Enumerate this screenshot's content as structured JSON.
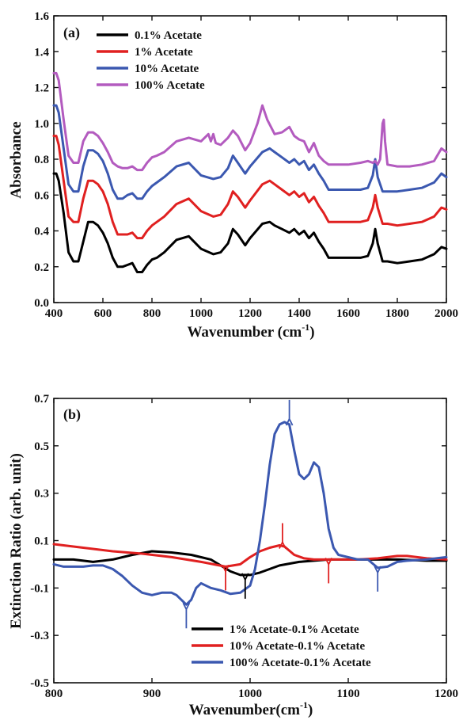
{
  "chart_data": [
    {
      "type": "line",
      "panel": "(a)",
      "xlabel": "Wavenumber (cm",
      "xlabel_sup": "-1",
      "xlabel_end": ")",
      "ylabel": "Absorbance",
      "xlim": [
        400,
        2000
      ],
      "ylim": [
        0.0,
        1.6
      ],
      "xticks": [
        400,
        600,
        800,
        1000,
        1200,
        1400,
        1600,
        1800,
        2000
      ],
      "yticks": [
        "0.0",
        "0.2",
        "0.4",
        "0.6",
        "0.8",
        "1.0",
        "1.2",
        "1.4",
        "1.6"
      ],
      "legend_position": "top-left",
      "series": [
        {
          "name": "0.1% Acetate",
          "color": "#000000",
          "x": [
            400,
            410,
            420,
            440,
            460,
            480,
            500,
            520,
            540,
            560,
            580,
            600,
            620,
            640,
            660,
            680,
            700,
            720,
            740,
            760,
            780,
            800,
            820,
            850,
            900,
            950,
            1000,
            1050,
            1080,
            1110,
            1130,
            1150,
            1180,
            1200,
            1250,
            1280,
            1300,
            1330,
            1360,
            1380,
            1400,
            1420,
            1440,
            1460,
            1480,
            1500,
            1520,
            1560,
            1600,
            1650,
            1680,
            1700,
            1710,
            1720,
            1740,
            1760,
            1800,
            1850,
            1900,
            1950,
            1980,
            2000
          ],
          "y": [
            0.72,
            0.72,
            0.68,
            0.5,
            0.28,
            0.23,
            0.23,
            0.34,
            0.45,
            0.45,
            0.43,
            0.39,
            0.33,
            0.25,
            0.2,
            0.2,
            0.21,
            0.22,
            0.17,
            0.17,
            0.21,
            0.24,
            0.25,
            0.28,
            0.35,
            0.37,
            0.3,
            0.27,
            0.28,
            0.33,
            0.41,
            0.38,
            0.32,
            0.36,
            0.44,
            0.45,
            0.43,
            0.41,
            0.39,
            0.41,
            0.38,
            0.4,
            0.36,
            0.39,
            0.34,
            0.3,
            0.25,
            0.25,
            0.25,
            0.25,
            0.26,
            0.33,
            0.41,
            0.33,
            0.23,
            0.23,
            0.22,
            0.23,
            0.24,
            0.27,
            0.31,
            0.3
          ]
        },
        {
          "name": "1% Acetate",
          "color": "#e02020",
          "x": [
            400,
            410,
            420,
            440,
            460,
            480,
            500,
            520,
            540,
            560,
            580,
            600,
            620,
            640,
            660,
            680,
            700,
            720,
            740,
            760,
            780,
            800,
            820,
            850,
            900,
            950,
            1000,
            1050,
            1080,
            1110,
            1130,
            1150,
            1180,
            1200,
            1250,
            1280,
            1300,
            1330,
            1360,
            1380,
            1400,
            1420,
            1440,
            1460,
            1480,
            1500,
            1520,
            1560,
            1600,
            1650,
            1680,
            1700,
            1710,
            1720,
            1740,
            1760,
            1800,
            1850,
            1900,
            1950,
            1980,
            2000
          ],
          "y": [
            0.93,
            0.93,
            0.88,
            0.68,
            0.48,
            0.45,
            0.45,
            0.58,
            0.68,
            0.68,
            0.66,
            0.62,
            0.55,
            0.45,
            0.38,
            0.38,
            0.38,
            0.39,
            0.36,
            0.36,
            0.4,
            0.43,
            0.45,
            0.48,
            0.55,
            0.58,
            0.51,
            0.48,
            0.49,
            0.55,
            0.62,
            0.59,
            0.53,
            0.57,
            0.66,
            0.68,
            0.66,
            0.63,
            0.6,
            0.62,
            0.59,
            0.61,
            0.56,
            0.59,
            0.54,
            0.5,
            0.45,
            0.45,
            0.45,
            0.45,
            0.46,
            0.53,
            0.6,
            0.53,
            0.44,
            0.44,
            0.43,
            0.44,
            0.45,
            0.48,
            0.53,
            0.52
          ]
        },
        {
          "name": "10% Acetate",
          "color": "#3b58b0",
          "x": [
            400,
            410,
            420,
            440,
            460,
            480,
            500,
            520,
            540,
            560,
            580,
            600,
            620,
            640,
            660,
            680,
            700,
            720,
            740,
            760,
            780,
            800,
            820,
            850,
            900,
            950,
            1000,
            1050,
            1080,
            1110,
            1130,
            1150,
            1180,
            1200,
            1250,
            1280,
            1300,
            1330,
            1360,
            1380,
            1400,
            1420,
            1440,
            1460,
            1480,
            1500,
            1520,
            1560,
            1600,
            1650,
            1680,
            1700,
            1710,
            1720,
            1740,
            1760,
            1800,
            1850,
            1900,
            1950,
            1980,
            2000
          ],
          "y": [
            1.1,
            1.1,
            1.06,
            0.86,
            0.66,
            0.62,
            0.62,
            0.76,
            0.85,
            0.85,
            0.83,
            0.79,
            0.72,
            0.63,
            0.58,
            0.58,
            0.6,
            0.61,
            0.58,
            0.58,
            0.62,
            0.65,
            0.67,
            0.7,
            0.76,
            0.78,
            0.71,
            0.69,
            0.7,
            0.75,
            0.82,
            0.78,
            0.72,
            0.76,
            0.84,
            0.86,
            0.84,
            0.81,
            0.78,
            0.8,
            0.77,
            0.79,
            0.74,
            0.77,
            0.72,
            0.68,
            0.63,
            0.63,
            0.63,
            0.63,
            0.64,
            0.71,
            0.8,
            0.7,
            0.62,
            0.62,
            0.62,
            0.63,
            0.64,
            0.67,
            0.72,
            0.7
          ]
        },
        {
          "name": "100% Acetate",
          "color": "#b35bbf",
          "x": [
            400,
            410,
            420,
            440,
            460,
            480,
            500,
            520,
            540,
            560,
            580,
            600,
            620,
            640,
            660,
            680,
            700,
            720,
            740,
            760,
            780,
            800,
            820,
            850,
            900,
            950,
            1000,
            1030,
            1040,
            1050,
            1060,
            1080,
            1110,
            1130,
            1150,
            1180,
            1200,
            1230,
            1250,
            1270,
            1300,
            1330,
            1360,
            1380,
            1400,
            1420,
            1440,
            1460,
            1480,
            1500,
            1520,
            1560,
            1600,
            1650,
            1680,
            1700,
            1710,
            1720,
            1730,
            1740,
            1745,
            1750,
            1760,
            1800,
            1850,
            1900,
            1950,
            1980,
            2000
          ],
          "y": [
            1.28,
            1.28,
            1.24,
            1.02,
            0.82,
            0.78,
            0.78,
            0.9,
            0.95,
            0.95,
            0.93,
            0.89,
            0.84,
            0.78,
            0.76,
            0.75,
            0.75,
            0.76,
            0.74,
            0.74,
            0.78,
            0.81,
            0.82,
            0.84,
            0.9,
            0.92,
            0.9,
            0.94,
            0.9,
            0.94,
            0.89,
            0.88,
            0.92,
            0.96,
            0.93,
            0.85,
            0.89,
            1.0,
            1.1,
            1.02,
            0.94,
            0.95,
            0.98,
            0.93,
            0.91,
            0.9,
            0.84,
            0.89,
            0.82,
            0.79,
            0.77,
            0.77,
            0.77,
            0.78,
            0.79,
            0.78,
            0.79,
            0.77,
            0.8,
            1.0,
            1.02,
            0.9,
            0.77,
            0.76,
            0.76,
            0.77,
            0.79,
            0.86,
            0.84
          ]
        }
      ]
    },
    {
      "type": "line",
      "panel": "(b)",
      "xlabel": "Wavenumber(cm",
      "xlabel_sup": "-1",
      "xlabel_end": ")",
      "ylabel": "Extinction Ratio (arb. unit)",
      "xlim": [
        800,
        1200
      ],
      "ylim": [
        -0.5,
        0.7
      ],
      "xticks": [
        800,
        900,
        1000,
        1100,
        1200
      ],
      "yticks": [
        "-0.5",
        "-0.3",
        "-0.1",
        "0.1",
        "0.3",
        "0.5",
        "0.7"
      ],
      "legend_position": "bottom-right",
      "series": [
        {
          "name": "1% Acetate-0.1% Acetate",
          "color": "#000000",
          "x": [
            800,
            820,
            840,
            860,
            880,
            900,
            920,
            940,
            960,
            980,
            990,
            1000,
            1010,
            1030,
            1050,
            1080,
            1100,
            1130,
            1150,
            1180,
            1200
          ],
          "y": [
            0.02,
            0.02,
            0.01,
            0.02,
            0.04,
            0.055,
            0.05,
            0.04,
            0.02,
            -0.03,
            -0.045,
            -0.045,
            -0.035,
            -0.005,
            0.01,
            0.02,
            0.02,
            0.02,
            0.02,
            0.015,
            0.015
          ]
        },
        {
          "name": "10% Acetate-0.1% Acetate",
          "color": "#e02020",
          "x": [
            800,
            830,
            860,
            890,
            920,
            950,
            975,
            990,
            1000,
            1010,
            1020,
            1030,
            1035,
            1045,
            1055,
            1065,
            1075,
            1085,
            1095,
            1110,
            1130,
            1150,
            1160,
            1180,
            1200
          ],
          "y": [
            0.085,
            0.07,
            0.055,
            0.045,
            0.03,
            0.01,
            -0.01,
            0.0,
            0.03,
            0.055,
            0.07,
            0.08,
            0.075,
            0.04,
            0.025,
            0.02,
            0.02,
            0.02,
            0.02,
            0.02,
            0.025,
            0.035,
            0.035,
            0.025,
            0.02
          ]
        },
        {
          "name": "100% Acetate-0.1% Acetate",
          "color": "#3b58b0",
          "x": [
            800,
            810,
            820,
            830,
            840,
            850,
            860,
            870,
            880,
            890,
            900,
            910,
            920,
            925,
            930,
            935,
            940,
            945,
            950,
            960,
            970,
            980,
            990,
            1000,
            1005,
            1010,
            1015,
            1020,
            1025,
            1030,
            1035,
            1040,
            1045,
            1050,
            1055,
            1060,
            1065,
            1070,
            1075,
            1080,
            1085,
            1090,
            1100,
            1110,
            1120,
            1130,
            1140,
            1150,
            1160,
            1180,
            1200
          ],
          "y": [
            0.0,
            -0.01,
            -0.01,
            -0.01,
            -0.005,
            -0.005,
            -0.02,
            -0.05,
            -0.09,
            -0.12,
            -0.13,
            -0.12,
            -0.12,
            -0.13,
            -0.15,
            -0.17,
            -0.15,
            -0.1,
            -0.08,
            -0.1,
            -0.11,
            -0.125,
            -0.12,
            -0.09,
            -0.02,
            0.1,
            0.25,
            0.42,
            0.55,
            0.59,
            0.6,
            0.59,
            0.48,
            0.38,
            0.36,
            0.38,
            0.43,
            0.41,
            0.3,
            0.15,
            0.07,
            0.04,
            0.03,
            0.02,
            0.02,
            -0.015,
            -0.01,
            0.01,
            0.015,
            0.02,
            0.03
          ]
        }
      ],
      "annotations": [
        {
          "kind": "arrow-down",
          "x": 1040,
          "y": 0.6,
          "color": "#3b58b0"
        },
        {
          "kind": "arrow-down",
          "x": 1033,
          "y": 0.08,
          "color": "#e02020"
        },
        {
          "kind": "arrow-up",
          "x": 975,
          "y": -0.01,
          "color": "#e02020"
        },
        {
          "kind": "arrow-up",
          "x": 995,
          "y": -0.045,
          "color": "#000000"
        },
        {
          "kind": "arrow-up",
          "x": 935,
          "y": -0.17,
          "color": "#3b58b0"
        },
        {
          "kind": "arrow-up",
          "x": 1080,
          "y": 0.02,
          "color": "#e02020"
        },
        {
          "kind": "arrow-up",
          "x": 1130,
          "y": -0.015,
          "color": "#3b58b0"
        }
      ]
    }
  ]
}
